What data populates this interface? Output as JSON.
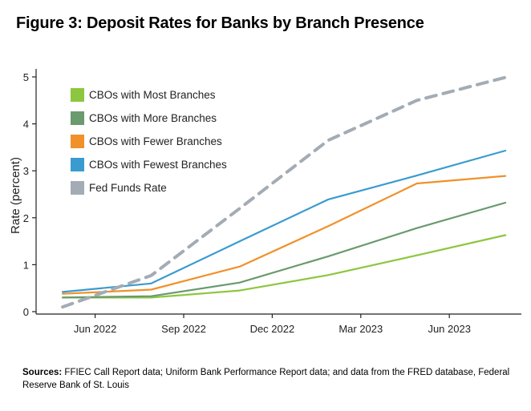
{
  "header": {
    "title": "Figure 3: Deposit Rates for Banks by Branch Presence"
  },
  "footer": {
    "sources_label": "Sources:",
    "sources_text": " FFIEC Call Report data; Uniform Bank Performance Report data; and data from the FRED database, Federal Reserve Bank of St. Louis"
  },
  "chart_data": {
    "type": "line",
    "title": "Figure 3: Deposit Rates for Banks by Branch Presence",
    "xlabel": "",
    "ylabel": "Rate (percent)",
    "ylim": [
      0,
      5
    ],
    "yticks": [
      0,
      1,
      2,
      3,
      4,
      5
    ],
    "xlim": [
      0,
      15.7
    ],
    "xticks": [
      {
        "value": 2,
        "label": "Jun 2022"
      },
      {
        "value": 5,
        "label": "Sep 2022"
      },
      {
        "value": 8,
        "label": "Dec 2022"
      },
      {
        "value": 11,
        "label": "Mar 2023"
      },
      {
        "value": 14,
        "label": "Jun 2023"
      }
    ],
    "x": [
      0.9,
      3.9,
      6.9,
      9.9,
      12.9,
      15.9
    ],
    "grid": false,
    "legend_position": "top-left",
    "series": [
      {
        "name": "CBOs with Most Branches",
        "color": "#8dc63f",
        "dashed": false,
        "points": [
          [
            0.9,
            0.3
          ],
          [
            3.9,
            0.3
          ],
          [
            6.9,
            0.45
          ],
          [
            9.9,
            0.78
          ],
          [
            12.9,
            1.2
          ],
          [
            15.9,
            1.63
          ]
        ]
      },
      {
        "name": "CBOs with More Branches",
        "color": "#6a9a6e",
        "dashed": false,
        "points": [
          [
            0.9,
            0.3
          ],
          [
            3.9,
            0.33
          ],
          [
            6.9,
            0.62
          ],
          [
            9.9,
            1.18
          ],
          [
            12.9,
            1.78
          ],
          [
            15.9,
            2.32
          ]
        ]
      },
      {
        "name": "CBOs with Fewer Branches",
        "color": "#f0912a",
        "dashed": false,
        "points": [
          [
            0.9,
            0.38
          ],
          [
            3.9,
            0.47
          ],
          [
            6.9,
            0.96
          ],
          [
            9.9,
            1.82
          ],
          [
            12.9,
            2.73
          ],
          [
            15.9,
            2.89
          ]
        ]
      },
      {
        "name": "CBOs with Fewest Branches",
        "color": "#3a9bcf",
        "dashed": false,
        "points": [
          [
            0.9,
            0.42
          ],
          [
            3.9,
            0.6
          ],
          [
            6.9,
            1.5
          ],
          [
            9.9,
            2.39
          ],
          [
            12.9,
            2.9
          ],
          [
            15.9,
            3.43
          ]
        ]
      },
      {
        "name": "Fed Funds Rate",
        "color": "#a3acb5",
        "dashed": true,
        "points": [
          [
            0.9,
            0.1
          ],
          [
            3.9,
            0.77
          ],
          [
            6.9,
            2.2
          ],
          [
            9.9,
            3.65
          ],
          [
            12.9,
            4.5
          ],
          [
            15.9,
            4.99
          ]
        ]
      }
    ]
  }
}
